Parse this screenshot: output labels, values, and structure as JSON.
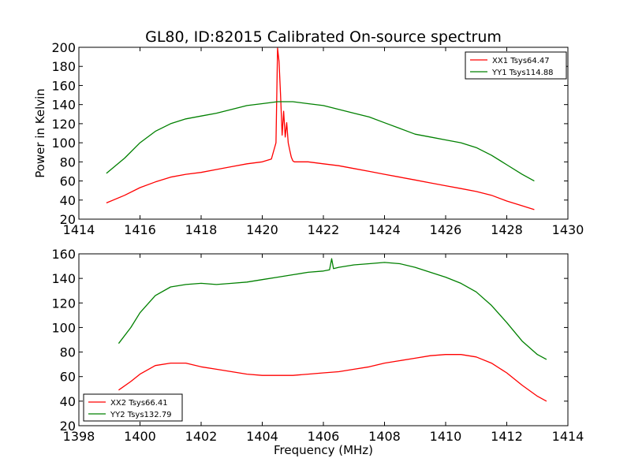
{
  "chart_data": [
    {
      "type": "line",
      "title": "GL80, ID:82015 Calibrated On-source spectrum",
      "xlabel": "",
      "ylabel": "Power in Kelvin",
      "xlim": [
        1414,
        1430
      ],
      "ylim": [
        20,
        200
      ],
      "xticks": [
        1414,
        1416,
        1418,
        1420,
        1422,
        1424,
        1426,
        1428,
        1430
      ],
      "yticks": [
        20,
        40,
        60,
        80,
        100,
        120,
        140,
        160,
        180,
        200
      ],
      "legend_position": "top-right",
      "grid": false,
      "series": [
        {
          "name": "XX1 Tsys64.47",
          "color": "#ff0000",
          "x": [
            1414.9,
            1415.5,
            1416.0,
            1416.5,
            1417.0,
            1417.5,
            1418.0,
            1418.5,
            1419.0,
            1419.5,
            1420.0,
            1420.3,
            1420.45,
            1420.5,
            1420.55,
            1420.6,
            1420.65,
            1420.7,
            1420.75,
            1420.8,
            1420.85,
            1420.9,
            1420.95,
            1421.0,
            1421.05,
            1421.1,
            1421.2,
            1421.5,
            1422.0,
            1422.5,
            1423.0,
            1423.5,
            1424.0,
            1424.5,
            1425.0,
            1425.5,
            1426.0,
            1426.5,
            1427.0,
            1427.5,
            1428.0,
            1428.5,
            1428.9
          ],
          "y": [
            37,
            45,
            53,
            59,
            64,
            67,
            69,
            72,
            75,
            78,
            80,
            83,
            100,
            199,
            185,
            150,
            108,
            133,
            106,
            121,
            100,
            92,
            85,
            81,
            80,
            80,
            80,
            80,
            78,
            76,
            73,
            70,
            67,
            64,
            61,
            58,
            55,
            52,
            49,
            45,
            39,
            34,
            30
          ]
        },
        {
          "name": "YY1 Tsys114.88",
          "color": "#008000",
          "x": [
            1414.9,
            1415.5,
            1416.0,
            1416.5,
            1417.0,
            1417.5,
            1418.0,
            1418.5,
            1419.0,
            1419.5,
            1420.0,
            1420.5,
            1421.0,
            1421.5,
            1422.0,
            1422.5,
            1423.0,
            1423.5,
            1424.0,
            1424.5,
            1425.0,
            1425.5,
            1426.0,
            1426.5,
            1427.0,
            1427.5,
            1428.0,
            1428.5,
            1428.9
          ],
          "y": [
            68,
            84,
            100,
            112,
            120,
            125,
            128,
            131,
            135,
            139,
            141,
            143,
            143,
            141,
            139,
            135,
            131,
            127,
            121,
            115,
            109,
            106,
            103,
            100,
            95,
            87,
            77,
            67,
            60
          ]
        }
      ]
    },
    {
      "type": "line",
      "title": "",
      "xlabel": "Frequency (MHz)",
      "ylabel": "",
      "xlim": [
        1398,
        1414
      ],
      "ylim": [
        20,
        160
      ],
      "xticks": [
        1398,
        1400,
        1402,
        1404,
        1406,
        1408,
        1410,
        1412,
        1414
      ],
      "yticks": [
        20,
        40,
        60,
        80,
        100,
        120,
        140,
        160
      ],
      "legend_position": "bottom-left",
      "grid": false,
      "series": [
        {
          "name": "XX2 Tsys66.41",
          "color": "#ff0000",
          "x": [
            1399.3,
            1399.7,
            1400.0,
            1400.5,
            1401.0,
            1401.5,
            1402.0,
            1402.5,
            1403.0,
            1403.5,
            1404.0,
            1404.5,
            1405.0,
            1405.5,
            1406.0,
            1406.5,
            1407.0,
            1407.5,
            1408.0,
            1408.5,
            1409.0,
            1409.5,
            1410.0,
            1410.5,
            1411.0,
            1411.5,
            1412.0,
            1412.5,
            1413.0,
            1413.3
          ],
          "y": [
            49,
            56,
            62,
            69,
            71,
            71,
            68,
            66,
            64,
            62,
            61,
            61,
            61,
            62,
            63,
            64,
            66,
            68,
            71,
            73,
            75,
            77,
            78,
            78,
            76,
            71,
            63,
            53,
            44,
            40
          ]
        },
        {
          "name": "YY2 Tsys132.79",
          "color": "#008000",
          "x": [
            1399.3,
            1399.7,
            1400.0,
            1400.5,
            1401.0,
            1401.5,
            1402.0,
            1402.5,
            1403.0,
            1403.5,
            1404.0,
            1404.5,
            1405.0,
            1405.5,
            1406.0,
            1406.2,
            1406.27,
            1406.33,
            1406.5,
            1407.0,
            1407.5,
            1408.0,
            1408.5,
            1409.0,
            1409.5,
            1410.0,
            1410.5,
            1411.0,
            1411.5,
            1412.0,
            1412.5,
            1413.0,
            1413.3
          ],
          "y": [
            87,
            100,
            112,
            126,
            133,
            135,
            136,
            135,
            136,
            137,
            139,
            141,
            143,
            145,
            146,
            147,
            156,
            148,
            149,
            151,
            152,
            153,
            152,
            149,
            145,
            141,
            136,
            129,
            118,
            104,
            89,
            78,
            74
          ]
        }
      ]
    }
  ]
}
